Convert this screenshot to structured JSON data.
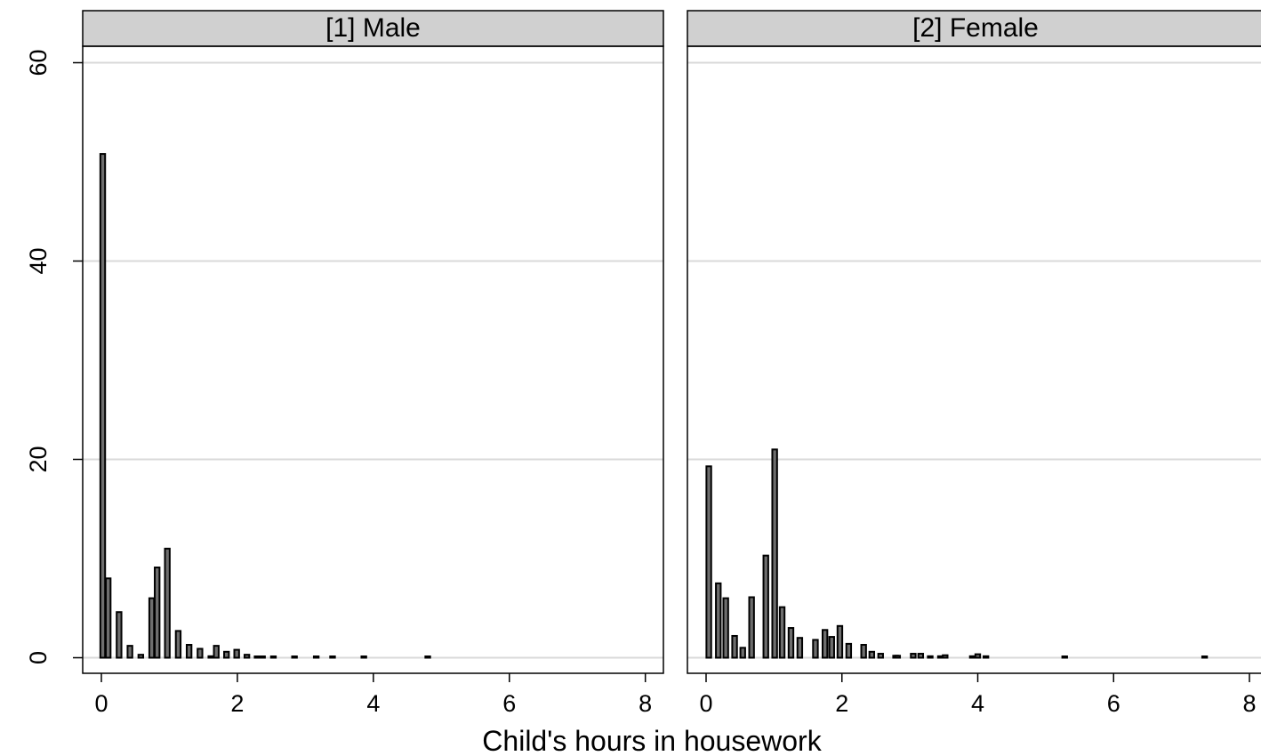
{
  "chart_data": {
    "type": "bar",
    "xlabel": "Child's hours in housework",
    "ylabel": "",
    "xlim": [
      -0.3,
      8.3
    ],
    "ylim": [
      -1.6,
      61.6
    ],
    "xticks": [
      0,
      2,
      4,
      6,
      8
    ],
    "yticks": [
      0,
      20,
      40,
      60
    ],
    "grid": true,
    "bar_width": 0.07,
    "panels": [
      {
        "name": "[1] Male",
        "x": [
          0.02,
          0.1,
          0.26,
          0.42,
          0.58,
          0.74,
          0.82,
          0.97,
          1.13,
          1.29,
          1.45,
          1.61,
          1.69,
          1.84,
          1.99,
          2.14,
          2.29,
          2.37,
          2.53,
          2.84,
          3.16,
          3.4,
          3.86,
          4.8
        ],
        "values": [
          50.8,
          8.0,
          4.6,
          1.2,
          0.3,
          6.0,
          9.1,
          11.0,
          2.7,
          1.3,
          0.9,
          0.15,
          1.2,
          0.6,
          0.8,
          0.3,
          0.1,
          0.1,
          0.1,
          0.1,
          0.1,
          0.1,
          0.1,
          0.1
        ]
      },
      {
        "name": "[2] Female",
        "x": [
          0.04,
          0.18,
          0.29,
          0.42,
          0.54,
          0.67,
          0.88,
          1.01,
          1.12,
          1.25,
          1.38,
          1.61,
          1.75,
          1.85,
          1.97,
          2.1,
          2.32,
          2.44,
          2.57,
          2.79,
          2.82,
          3.05,
          3.16,
          3.3,
          3.45,
          3.52,
          3.92,
          4.0,
          4.12,
          5.28,
          7.34
        ],
        "values": [
          19.3,
          7.5,
          6.0,
          2.2,
          1.0,
          6.1,
          10.3,
          21.0,
          5.1,
          3.0,
          2.0,
          1.8,
          2.8,
          2.1,
          3.2,
          1.4,
          1.3,
          0.6,
          0.4,
          0.2,
          0.2,
          0.4,
          0.4,
          0.15,
          0.15,
          0.25,
          0.15,
          0.35,
          0.15,
          0.1,
          0.1
        ]
      }
    ]
  }
}
